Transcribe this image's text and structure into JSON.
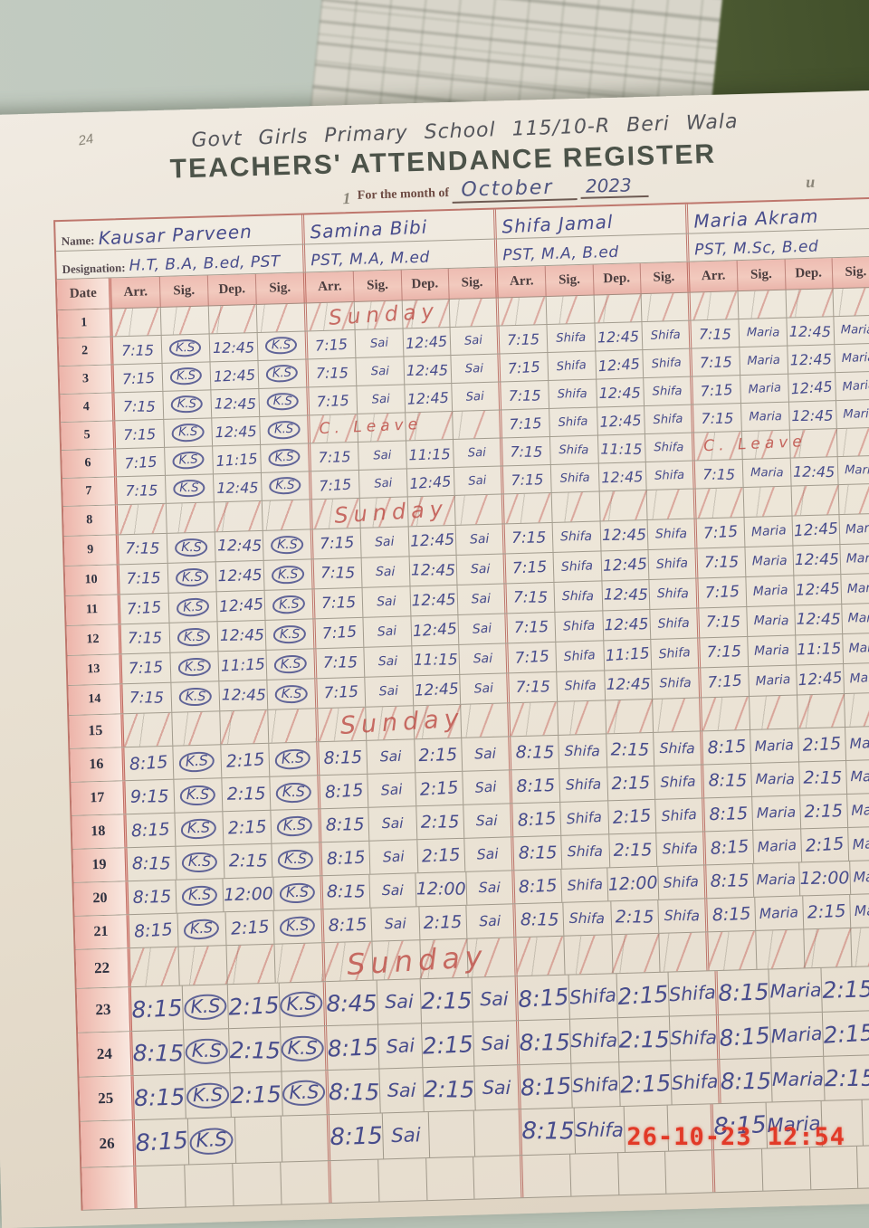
{
  "photo": {
    "timestamp": "26-10-23 12:54"
  },
  "register": {
    "page_mark": "24",
    "school_line": "Govt Girls Primary School 115/10-R Beri Wala",
    "title": "TEACHERS' ATTENDANCE REGISTER",
    "month_label": "For the month of",
    "month_value": "October",
    "year_value": "2023",
    "pencil_mark_left": "1",
    "pencil_mark_right": "u",
    "name_label": "Name:",
    "designation_label": "Designation:",
    "date_header": "Date",
    "columns": [
      "Arr.",
      "Sig.",
      "Dep.",
      "Sig."
    ],
    "sunday_label": "Sunday",
    "leave_label": "C. Leave",
    "teachers": [
      {
        "name": "Kausar Parveen",
        "designation": "H.T, B.A, B.ed, PST",
        "signature": "K.S",
        "circled": true
      },
      {
        "name": "Samina Bibi",
        "designation": "PST, M.A, M.ed",
        "signature": "Sai",
        "circled": false
      },
      {
        "name": "Shifa Jamal",
        "designation": "PST, M.A, B.ed",
        "signature": "Shifa",
        "circled": false
      },
      {
        "name": "Maria Akram",
        "designation": "PST, M.Sc, B.ed",
        "signature": "Maria",
        "circled": false
      }
    ],
    "rows": [
      {
        "date": "1",
        "sunday": true
      },
      {
        "date": "2",
        "entries": [
          {
            "arr": "7:15",
            "dep": "12:45"
          },
          {
            "arr": "7:15",
            "dep": "12:45"
          },
          {
            "arr": "7:15",
            "dep": "12:45"
          },
          {
            "arr": "7:15",
            "dep": "12:45"
          }
        ]
      },
      {
        "date": "3",
        "entries": [
          {
            "arr": "7:15",
            "dep": "12:45"
          },
          {
            "arr": "7:15",
            "dep": "12:45"
          },
          {
            "arr": "7:15",
            "dep": "12:45"
          },
          {
            "arr": "7:15",
            "dep": "12:45"
          }
        ]
      },
      {
        "date": "4",
        "entries": [
          {
            "arr": "7:15",
            "dep": "12:45"
          },
          {
            "arr": "7:15",
            "dep": "12:45"
          },
          {
            "arr": "7:15",
            "dep": "12:45"
          },
          {
            "arr": "7:15",
            "dep": "12:45"
          }
        ]
      },
      {
        "date": "5",
        "entries": [
          {
            "arr": "7:15",
            "dep": "12:45"
          },
          {
            "leave": true
          },
          {
            "arr": "7:15",
            "dep": "12:45"
          },
          {
            "arr": "7:15",
            "dep": "12:45"
          }
        ]
      },
      {
        "date": "6",
        "entries": [
          {
            "arr": "7:15",
            "dep": "11:15"
          },
          {
            "arr": "7:15",
            "dep": "11:15"
          },
          {
            "arr": "7:15",
            "dep": "11:15"
          },
          {
            "leave": true
          }
        ]
      },
      {
        "date": "7",
        "entries": [
          {
            "arr": "7:15",
            "dep": "12:45"
          },
          {
            "arr": "7:15",
            "dep": "12:45"
          },
          {
            "arr": "7:15",
            "dep": "12:45"
          },
          {
            "arr": "7:15",
            "dep": "12:45"
          }
        ]
      },
      {
        "date": "8",
        "sunday": true
      },
      {
        "date": "9",
        "entries": [
          {
            "arr": "7:15",
            "dep": "12:45"
          },
          {
            "arr": "7:15",
            "dep": "12:45"
          },
          {
            "arr": "7:15",
            "dep": "12:45"
          },
          {
            "arr": "7:15",
            "dep": "12:45"
          }
        ]
      },
      {
        "date": "10",
        "entries": [
          {
            "arr": "7:15",
            "dep": "12:45"
          },
          {
            "arr": "7:15",
            "dep": "12:45"
          },
          {
            "arr": "7:15",
            "dep": "12:45"
          },
          {
            "arr": "7:15",
            "dep": "12:45"
          }
        ]
      },
      {
        "date": "11",
        "entries": [
          {
            "arr": "7:15",
            "dep": "12:45"
          },
          {
            "arr": "7:15",
            "dep": "12:45"
          },
          {
            "arr": "7:15",
            "dep": "12:45"
          },
          {
            "arr": "7:15",
            "dep": "12:45"
          }
        ]
      },
      {
        "date": "12",
        "entries": [
          {
            "arr": "7:15",
            "dep": "12:45"
          },
          {
            "arr": "7:15",
            "dep": "12:45"
          },
          {
            "arr": "7:15",
            "dep": "12:45"
          },
          {
            "arr": "7:15",
            "dep": "12:45"
          }
        ]
      },
      {
        "date": "13",
        "entries": [
          {
            "arr": "7:15",
            "dep": "11:15"
          },
          {
            "arr": "7:15",
            "dep": "11:15"
          },
          {
            "arr": "7:15",
            "dep": "11:15"
          },
          {
            "arr": "7:15",
            "dep": "11:15"
          }
        ]
      },
      {
        "date": "14",
        "entries": [
          {
            "arr": "7:15",
            "dep": "12:45"
          },
          {
            "arr": "7:15",
            "dep": "12:45"
          },
          {
            "arr": "7:15",
            "dep": "12:45"
          },
          {
            "arr": "7:15",
            "dep": "12:45"
          }
        ]
      },
      {
        "date": "15",
        "sunday": true
      },
      {
        "date": "16",
        "entries": [
          {
            "arr": "8:15",
            "dep": "2:15"
          },
          {
            "arr": "8:15",
            "dep": "2:15"
          },
          {
            "arr": "8:15",
            "dep": "2:15"
          },
          {
            "arr": "8:15",
            "dep": "2:15"
          }
        ]
      },
      {
        "date": "17",
        "entries": [
          {
            "arr": "9:15",
            "dep": "2:15"
          },
          {
            "arr": "8:15",
            "dep": "2:15"
          },
          {
            "arr": "8:15",
            "dep": "2:15"
          },
          {
            "arr": "8:15",
            "dep": "2:15"
          }
        ]
      },
      {
        "date": "18",
        "entries": [
          {
            "arr": "8:15",
            "dep": "2:15"
          },
          {
            "arr": "8:15",
            "dep": "2:15"
          },
          {
            "arr": "8:15",
            "dep": "2:15"
          },
          {
            "arr": "8:15",
            "dep": "2:15"
          }
        ]
      },
      {
        "date": "19",
        "entries": [
          {
            "arr": "8:15",
            "dep": "2:15"
          },
          {
            "arr": "8:15",
            "dep": "2:15"
          },
          {
            "arr": "8:15",
            "dep": "2:15"
          },
          {
            "arr": "8:15",
            "dep": "2:15"
          }
        ]
      },
      {
        "date": "20",
        "entries": [
          {
            "arr": "8:15",
            "dep": "12:00"
          },
          {
            "arr": "8:15",
            "dep": "12:00"
          },
          {
            "arr": "8:15",
            "dep": "12:00"
          },
          {
            "arr": "8:15",
            "dep": "12:00"
          }
        ]
      },
      {
        "date": "21",
        "entries": [
          {
            "arr": "8:15",
            "dep": "2:15"
          },
          {
            "arr": "8:15",
            "dep": "2:15"
          },
          {
            "arr": "8:15",
            "dep": "2:15"
          },
          {
            "arr": "8:15",
            "dep": "2:15"
          }
        ]
      },
      {
        "date": "22",
        "sunday": true
      },
      {
        "date": "23",
        "entries": [
          {
            "arr": "8:15",
            "dep": "2:15"
          },
          {
            "arr": "8:45",
            "dep": "2:15"
          },
          {
            "arr": "8:15",
            "dep": "2:15"
          },
          {
            "arr": "8:15",
            "dep": "2:15"
          }
        ]
      },
      {
        "date": "24",
        "entries": [
          {
            "arr": "8:15",
            "dep": "2:15"
          },
          {
            "arr": "8:15",
            "dep": "2:15"
          },
          {
            "arr": "8:15",
            "dep": "2:15"
          },
          {
            "arr": "8:15",
            "dep": "2:15"
          }
        ]
      },
      {
        "date": "25",
        "entries": [
          {
            "arr": "8:15",
            "dep": "2:15"
          },
          {
            "arr": "8:15",
            "dep": "2:15"
          },
          {
            "arr": "8:15",
            "dep": "2:15"
          },
          {
            "arr": "8:15",
            "dep": "2:15"
          }
        ]
      },
      {
        "date": "26",
        "entries": [
          {
            "arr": "8:15",
            "dep": ""
          },
          {
            "arr": "8:15",
            "dep": ""
          },
          {
            "arr": "8:15",
            "dep": ""
          },
          {
            "arr": "8:15",
            "dep": ""
          }
        ]
      },
      {
        "date": "",
        "empty": true
      }
    ]
  }
}
